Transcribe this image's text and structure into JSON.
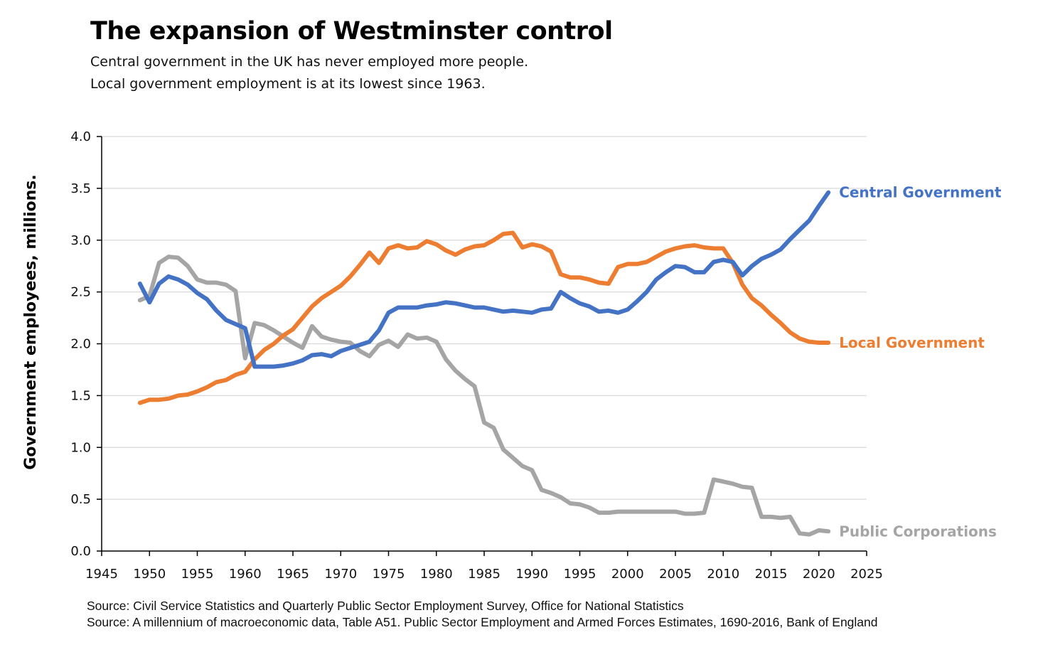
{
  "header": {
    "title": "The expansion of Westminster control",
    "subtitle_line1": "Central government in the UK has never employed more people.",
    "subtitle_line2": "Local government employment is at its lowest since 1963."
  },
  "footer": {
    "source1": "Source: Civil Service Statistics and Quarterly Public Sector Employment Survey, Office for National Statistics",
    "source2": "Source: A millennium of macroeconomic data, Table A51. Public Sector Employment and Armed Forces Estimates, 1690-2016, Bank of England"
  },
  "chart_data": {
    "type": "line",
    "title": "The expansion of Westminster control",
    "xlabel": "",
    "ylabel": "Government employees, millions.",
    "xlim": [
      1945,
      2025
    ],
    "ylim": [
      0,
      4
    ],
    "xticks": [
      1945,
      1950,
      1955,
      1960,
      1965,
      1970,
      1975,
      1980,
      1985,
      1990,
      1995,
      2000,
      2005,
      2010,
      2015,
      2020,
      2025
    ],
    "yticks": [
      "0.0",
      "0.5",
      "1.0",
      "1.5",
      "2.0",
      "2.5",
      "3.0",
      "3.5",
      "4.0"
    ],
    "grid": "horizontal",
    "legend": "labels at line ends (right)",
    "series": [
      {
        "name": "Central Government",
        "color": "#4472C4",
        "x": [
          1949,
          1950,
          1951,
          1952,
          1953,
          1954,
          1955,
          1956,
          1957,
          1958,
          1959,
          1960,
          1961,
          1962,
          1963,
          1964,
          1965,
          1966,
          1967,
          1968,
          1969,
          1970,
          1971,
          1972,
          1973,
          1974,
          1975,
          1976,
          1977,
          1978,
          1979,
          1980,
          1981,
          1982,
          1983,
          1984,
          1985,
          1986,
          1987,
          1988,
          1989,
          1990,
          1991,
          1992,
          1993,
          1994,
          1995,
          1996,
          1997,
          1998,
          1999,
          2000,
          2001,
          2002,
          2003,
          2004,
          2005,
          2006,
          2007,
          2008,
          2009,
          2010,
          2011,
          2012,
          2013,
          2014,
          2015,
          2016,
          2017,
          2018,
          2019,
          2020,
          2021
        ],
        "values": [
          2.58,
          2.4,
          2.58,
          2.65,
          2.62,
          2.57,
          2.49,
          2.43,
          2.32,
          2.23,
          2.19,
          2.15,
          1.78,
          1.78,
          1.78,
          1.79,
          1.81,
          1.84,
          1.89,
          1.9,
          1.88,
          1.93,
          1.96,
          1.99,
          2.02,
          2.13,
          2.3,
          2.35,
          2.35,
          2.35,
          2.37,
          2.38,
          2.4,
          2.39,
          2.37,
          2.35,
          2.35,
          2.33,
          2.31,
          2.32,
          2.31,
          2.3,
          2.33,
          2.34,
          2.5,
          2.44,
          2.39,
          2.36,
          2.31,
          2.32,
          2.3,
          2.33,
          2.41,
          2.5,
          2.62,
          2.69,
          2.75,
          2.74,
          2.69,
          2.69,
          2.79,
          2.81,
          2.79,
          2.66,
          2.75,
          2.82,
          2.86,
          2.91,
          3.01,
          3.1,
          3.19,
          3.33,
          3.46
        ]
      },
      {
        "name": "Local Government",
        "color": "#ED7D31",
        "x": [
          1949,
          1950,
          1951,
          1952,
          1953,
          1954,
          1955,
          1956,
          1957,
          1958,
          1959,
          1960,
          1961,
          1962,
          1963,
          1964,
          1965,
          1966,
          1967,
          1968,
          1969,
          1970,
          1971,
          1972,
          1973,
          1974,
          1975,
          1976,
          1977,
          1978,
          1979,
          1980,
          1981,
          1982,
          1983,
          1984,
          1985,
          1986,
          1987,
          1988,
          1989,
          1990,
          1991,
          1992,
          1993,
          1994,
          1995,
          1996,
          1997,
          1998,
          1999,
          2000,
          2001,
          2002,
          2003,
          2004,
          2005,
          2006,
          2007,
          2008,
          2009,
          2010,
          2011,
          2012,
          2013,
          2014,
          2015,
          2016,
          2017,
          2018,
          2019,
          2020,
          2021
        ],
        "values": [
          1.43,
          1.46,
          1.46,
          1.47,
          1.5,
          1.51,
          1.54,
          1.58,
          1.63,
          1.65,
          1.7,
          1.73,
          1.85,
          1.94,
          2.0,
          2.08,
          2.14,
          2.25,
          2.36,
          2.44,
          2.5,
          2.56,
          2.65,
          2.76,
          2.88,
          2.78,
          2.92,
          2.95,
          2.92,
          2.93,
          2.99,
          2.96,
          2.9,
          2.86,
          2.91,
          2.94,
          2.95,
          3.0,
          3.06,
          3.07,
          2.93,
          2.96,
          2.94,
          2.89,
          2.67,
          2.64,
          2.64,
          2.62,
          2.59,
          2.58,
          2.74,
          2.77,
          2.77,
          2.79,
          2.84,
          2.89,
          2.92,
          2.94,
          2.95,
          2.93,
          2.92,
          2.92,
          2.78,
          2.57,
          2.44,
          2.37,
          2.28,
          2.2,
          2.11,
          2.05,
          2.02,
          2.01,
          2.01
        ]
      },
      {
        "name": "Public Corporations",
        "color": "#A5A5A5",
        "x": [
          1949,
          1950,
          1951,
          1952,
          1953,
          1954,
          1955,
          1956,
          1957,
          1958,
          1959,
          1960,
          1961,
          1962,
          1963,
          1964,
          1965,
          1966,
          1967,
          1968,
          1969,
          1970,
          1971,
          1972,
          1973,
          1974,
          1975,
          1976,
          1977,
          1978,
          1979,
          1980,
          1981,
          1982,
          1983,
          1984,
          1985,
          1986,
          1987,
          1988,
          1989,
          1990,
          1991,
          1992,
          1993,
          1994,
          1995,
          1996,
          1997,
          1998,
          1999,
          2000,
          2001,
          2002,
          2003,
          2004,
          2005,
          2006,
          2007,
          2008,
          2009,
          2010,
          2011,
          2012,
          2013,
          2014,
          2015,
          2016,
          2017,
          2018,
          2019,
          2020,
          2021
        ],
        "values": [
          2.42,
          2.46,
          2.78,
          2.84,
          2.83,
          2.75,
          2.62,
          2.59,
          2.59,
          2.57,
          2.51,
          1.86,
          2.2,
          2.18,
          2.13,
          2.07,
          2.01,
          1.96,
          2.17,
          2.07,
          2.04,
          2.02,
          2.01,
          1.93,
          1.88,
          1.99,
          2.03,
          1.97,
          2.09,
          2.05,
          2.06,
          2.02,
          1.85,
          1.74,
          1.66,
          1.59,
          1.24,
          1.19,
          0.98,
          0.9,
          0.82,
          0.78,
          0.59,
          0.56,
          0.52,
          0.46,
          0.45,
          0.42,
          0.37,
          0.37,
          0.38,
          0.38,
          0.38,
          0.38,
          0.38,
          0.38,
          0.38,
          0.36,
          0.36,
          0.37,
          0.69,
          0.67,
          0.65,
          0.62,
          0.61,
          0.33,
          0.33,
          0.32,
          0.33,
          0.17,
          0.16,
          0.2,
          0.19
        ]
      }
    ]
  }
}
